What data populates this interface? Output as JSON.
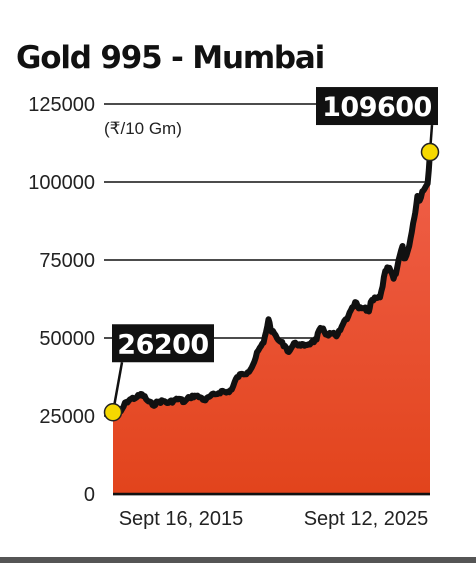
{
  "chart_data": {
    "type": "area",
    "title": "Gold 995 - Mumbai",
    "unit_label": "(₹/10 Gm)",
    "ylim": [
      0,
      125000
    ],
    "yticks": [
      {
        "value": 0,
        "label": "0"
      },
      {
        "value": 25000,
        "label": "25000"
      },
      {
        "value": 50000,
        "label": "50000"
      },
      {
        "value": 75000,
        "label": "75000"
      },
      {
        "value": 100000,
        "label": "100000"
      },
      {
        "value": 125000,
        "label": "125000"
      }
    ],
    "xlim": [
      "2015-09-16",
      "2025-09-12"
    ],
    "xticks": [
      {
        "value": "2015-09-16",
        "label": "Sept 16, 2015"
      },
      {
        "value": "2025-09-12",
        "label": "Sept 12, 2025"
      }
    ],
    "series": [
      {
        "x": [
          "2015-09-16",
          "2015-10-15",
          "2015-12-15",
          "2016-02-15",
          "2016-04-15",
          "2016-06-15",
          "2016-08-15",
          "2016-10-15",
          "2016-12-15",
          "2017-02-15",
          "2017-04-15",
          "2017-06-15",
          "2017-08-15",
          "2017-10-15",
          "2017-12-15",
          "2018-02-15",
          "2018-04-15",
          "2018-06-15",
          "2018-08-15",
          "2018-10-15",
          "2018-12-15",
          "2019-02-15",
          "2019-04-15",
          "2019-06-15",
          "2019-08-15",
          "2019-10-15",
          "2019-12-15",
          "2020-02-15",
          "2020-04-15",
          "2020-06-15",
          "2020-08-10",
          "2020-09-15",
          "2020-10-15",
          "2020-11-15",
          "2020-12-15",
          "2021-02-15",
          "2021-03-31",
          "2021-05-15",
          "2021-06-15",
          "2021-08-15",
          "2021-10-15",
          "2021-12-15",
          "2022-02-15",
          "2022-03-15",
          "2022-04-15",
          "2022-06-15",
          "2022-08-15",
          "2022-09-30",
          "2022-11-15",
          "2022-12-15",
          "2023-02-15",
          "2023-04-15",
          "2023-05-05",
          "2023-06-15",
          "2023-08-15",
          "2023-10-10",
          "2023-10-30",
          "2023-12-15",
          "2024-02-15",
          "2024-03-15",
          "2024-04-15",
          "2024-05-20",
          "2024-06-15",
          "2024-07-20",
          "2024-08-15",
          "2024-09-15",
          "2024-10-30",
          "2024-11-15",
          "2024-12-15",
          "2025-01-15",
          "2025-02-15",
          "2025-03-15",
          "2025-04-20",
          "2025-05-15",
          "2025-06-15",
          "2025-07-15",
          "2025-08-15",
          "2025-09-12"
        ],
        "values": [
          26200,
          27500,
          26500,
          29500,
          30500,
          31000,
          32000,
          30000,
          28500,
          29500,
          29800,
          29200,
          30000,
          30500,
          29500,
          31000,
          31500,
          31000,
          30000,
          31500,
          32000,
          33000,
          32500,
          33500,
          37500,
          38500,
          39000,
          41500,
          46000,
          48500,
          56000,
          52000,
          51500,
          50000,
          49000,
          47500,
          45500,
          47500,
          48500,
          47500,
          47800,
          48500,
          49500,
          52500,
          53000,
          51000,
          51500,
          50500,
          52500,
          54500,
          57000,
          60000,
          61500,
          59500,
          59500,
          58500,
          61500,
          63000,
          63000,
          66500,
          71500,
          72500,
          71500,
          69000,
          70500,
          75000,
          79500,
          75500,
          76500,
          79500,
          84000,
          88500,
          95500,
          94000,
          97000,
          98000,
          99500,
          109600
        ]
      }
    ],
    "annotations": [
      {
        "x": "2015-09-16",
        "value": 26200,
        "label": "26200"
      },
      {
        "x": "2025-09-12",
        "value": 109600,
        "label": "109600"
      }
    ],
    "colors": {
      "area_top": "#f0604a",
      "area_bottom": "#e2441c",
      "line": "#111111",
      "marker": "#f5d800",
      "callout_bg": "#111111",
      "grid": "#111111"
    },
    "grid": true,
    "legend": "none"
  }
}
